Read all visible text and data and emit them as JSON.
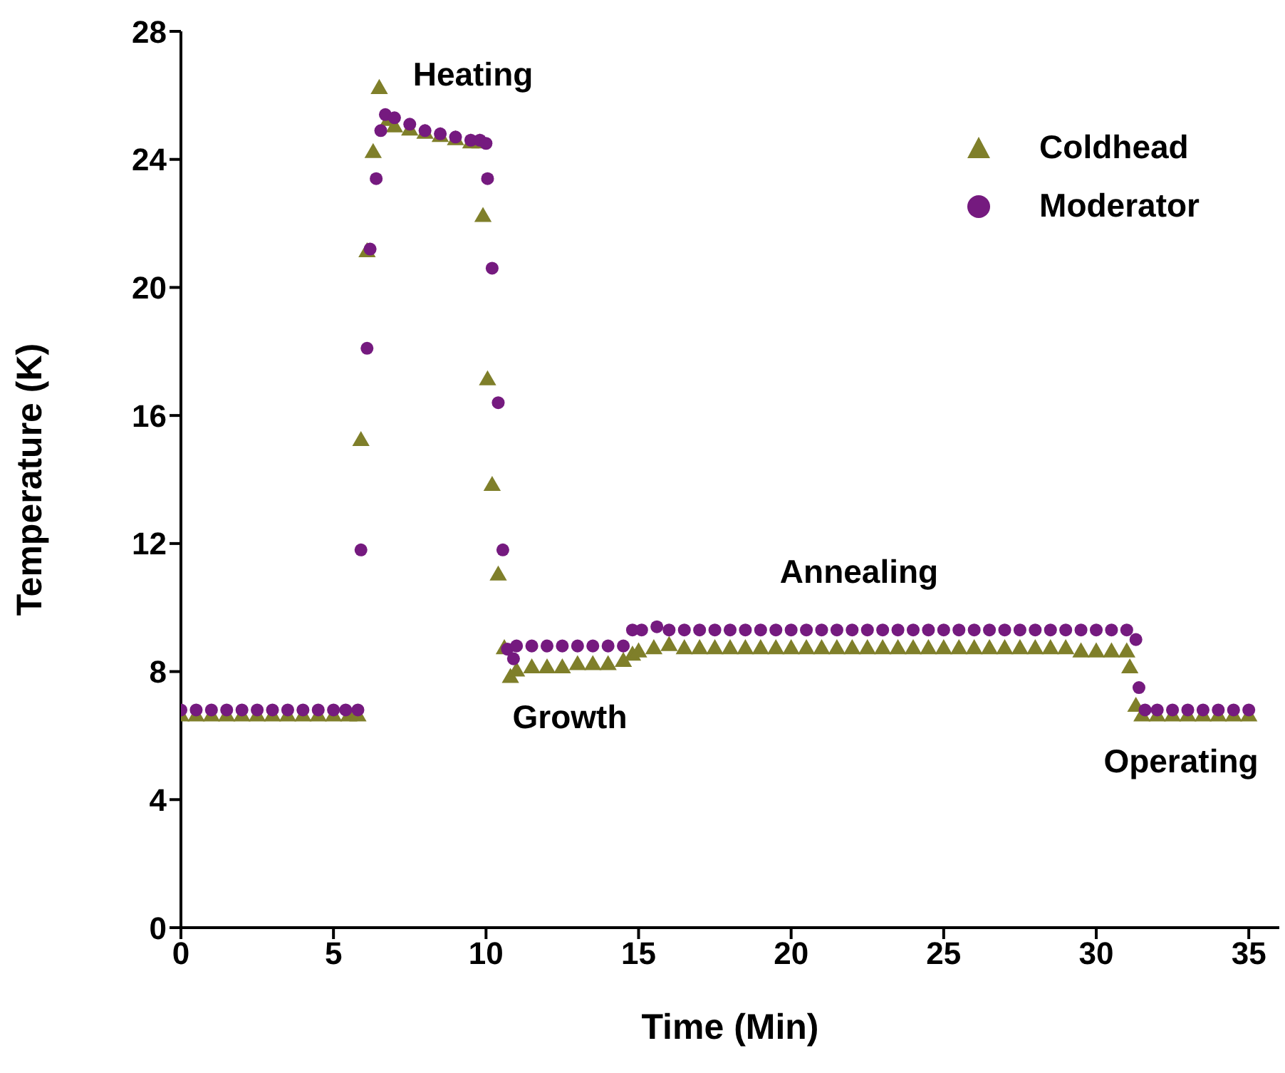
{
  "chart_data": {
    "type": "scatter",
    "xlabel": "Time (Min)",
    "ylabel": "Temperature (K)",
    "xlim": [
      0,
      36
    ],
    "xticks": [
      0,
      5,
      10,
      15,
      20,
      25,
      30,
      35
    ],
    "ylim": [
      0,
      28
    ],
    "yticks": [
      0,
      4,
      8,
      12,
      16,
      20,
      24,
      28
    ],
    "grid": false,
    "legend": "top right",
    "annotations": [
      "Heating",
      "Growth",
      "Annealing",
      "Operating"
    ],
    "series": [
      {
        "name": "Coldhead",
        "color": "#7f7f2a",
        "marker": "triangle",
        "x": [
          0,
          0.5,
          1,
          1.5,
          2,
          2.5,
          3,
          3.5,
          4,
          4.5,
          5,
          5.5,
          5.8,
          5.9,
          6.1,
          6.3,
          6.5,
          6.8,
          7,
          7.5,
          8,
          8.5,
          9,
          9.5,
          9.8,
          9.9,
          10.05,
          10.2,
          10.4,
          10.6,
          10.8,
          11,
          11.5,
          12,
          12.5,
          13,
          13.5,
          14,
          14.5,
          14.8,
          15,
          15.5,
          16,
          16.5,
          17,
          17.5,
          18,
          18.5,
          19,
          19.5,
          20,
          20.5,
          21,
          21.5,
          22,
          22.5,
          23,
          23.5,
          24,
          24.5,
          25,
          25.5,
          26,
          26.5,
          27,
          27.5,
          28,
          28.5,
          29,
          29.5,
          30,
          30.5,
          31,
          31.1,
          31.3,
          31.5,
          32,
          32.5,
          33,
          33.5,
          34,
          34.5,
          35
        ],
        "values": [
          6.6,
          6.6,
          6.6,
          6.6,
          6.6,
          6.6,
          6.6,
          6.6,
          6.6,
          6.6,
          6.6,
          6.6,
          6.6,
          15.2,
          21.1,
          24.2,
          26.2,
          25.2,
          25.0,
          24.9,
          24.8,
          24.7,
          24.6,
          24.5,
          24.5,
          22.2,
          17.1,
          13.8,
          11.0,
          8.7,
          7.8,
          8.0,
          8.1,
          8.1,
          8.1,
          8.2,
          8.2,
          8.2,
          8.3,
          8.5,
          8.6,
          8.7,
          8.8,
          8.7,
          8.7,
          8.7,
          8.7,
          8.7,
          8.7,
          8.7,
          8.7,
          8.7,
          8.7,
          8.7,
          8.7,
          8.7,
          8.7,
          8.7,
          8.7,
          8.7,
          8.7,
          8.7,
          8.7,
          8.7,
          8.7,
          8.7,
          8.7,
          8.7,
          8.7,
          8.6,
          8.6,
          8.6,
          8.6,
          8.1,
          6.9,
          6.6,
          6.6,
          6.6,
          6.6,
          6.6,
          6.6,
          6.6,
          6.6
        ]
      },
      {
        "name": "Moderator",
        "color": "#751a7f",
        "marker": "circle",
        "x": [
          0,
          0.5,
          1,
          1.5,
          2,
          2.5,
          3,
          3.5,
          4,
          4.5,
          5,
          5.4,
          5.8,
          5.9,
          6.1,
          6.2,
          6.4,
          6.55,
          6.7,
          7,
          7.5,
          8,
          8.5,
          9,
          9.5,
          9.8,
          10,
          10.05,
          10.2,
          10.4,
          10.55,
          10.7,
          10.9,
          11,
          11.5,
          12,
          12.5,
          13,
          13.5,
          14,
          14.5,
          14.8,
          15.1,
          15.6,
          16,
          16.5,
          17,
          17.5,
          18,
          18.5,
          19,
          19.5,
          20,
          20.5,
          21,
          21.5,
          22,
          22.5,
          23,
          23.5,
          24,
          24.5,
          25,
          25.5,
          26,
          26.5,
          27,
          27.5,
          28,
          28.5,
          29,
          29.5,
          30,
          30.5,
          31,
          31.3,
          31.4,
          31.6,
          32,
          32.5,
          33,
          33.5,
          34,
          34.5,
          35
        ],
        "values": [
          6.8,
          6.8,
          6.8,
          6.8,
          6.8,
          6.8,
          6.8,
          6.8,
          6.8,
          6.8,
          6.8,
          6.8,
          6.8,
          11.8,
          18.1,
          21.2,
          23.4,
          24.9,
          25.4,
          25.3,
          25.1,
          24.9,
          24.8,
          24.7,
          24.6,
          24.6,
          24.5,
          23.4,
          20.6,
          16.4,
          11.8,
          8.7,
          8.4,
          8.8,
          8.8,
          8.8,
          8.8,
          8.8,
          8.8,
          8.8,
          8.8,
          9.3,
          9.3,
          9.4,
          9.3,
          9.3,
          9.3,
          9.3,
          9.3,
          9.3,
          9.3,
          9.3,
          9.3,
          9.3,
          9.3,
          9.3,
          9.3,
          9.3,
          9.3,
          9.3,
          9.3,
          9.3,
          9.3,
          9.3,
          9.3,
          9.3,
          9.3,
          9.3,
          9.3,
          9.3,
          9.3,
          9.3,
          9.3,
          9.3,
          9.3,
          9.0,
          7.5,
          6.8,
          6.8,
          6.8,
          6.8,
          6.8,
          6.8,
          6.8,
          6.8
        ]
      }
    ]
  }
}
